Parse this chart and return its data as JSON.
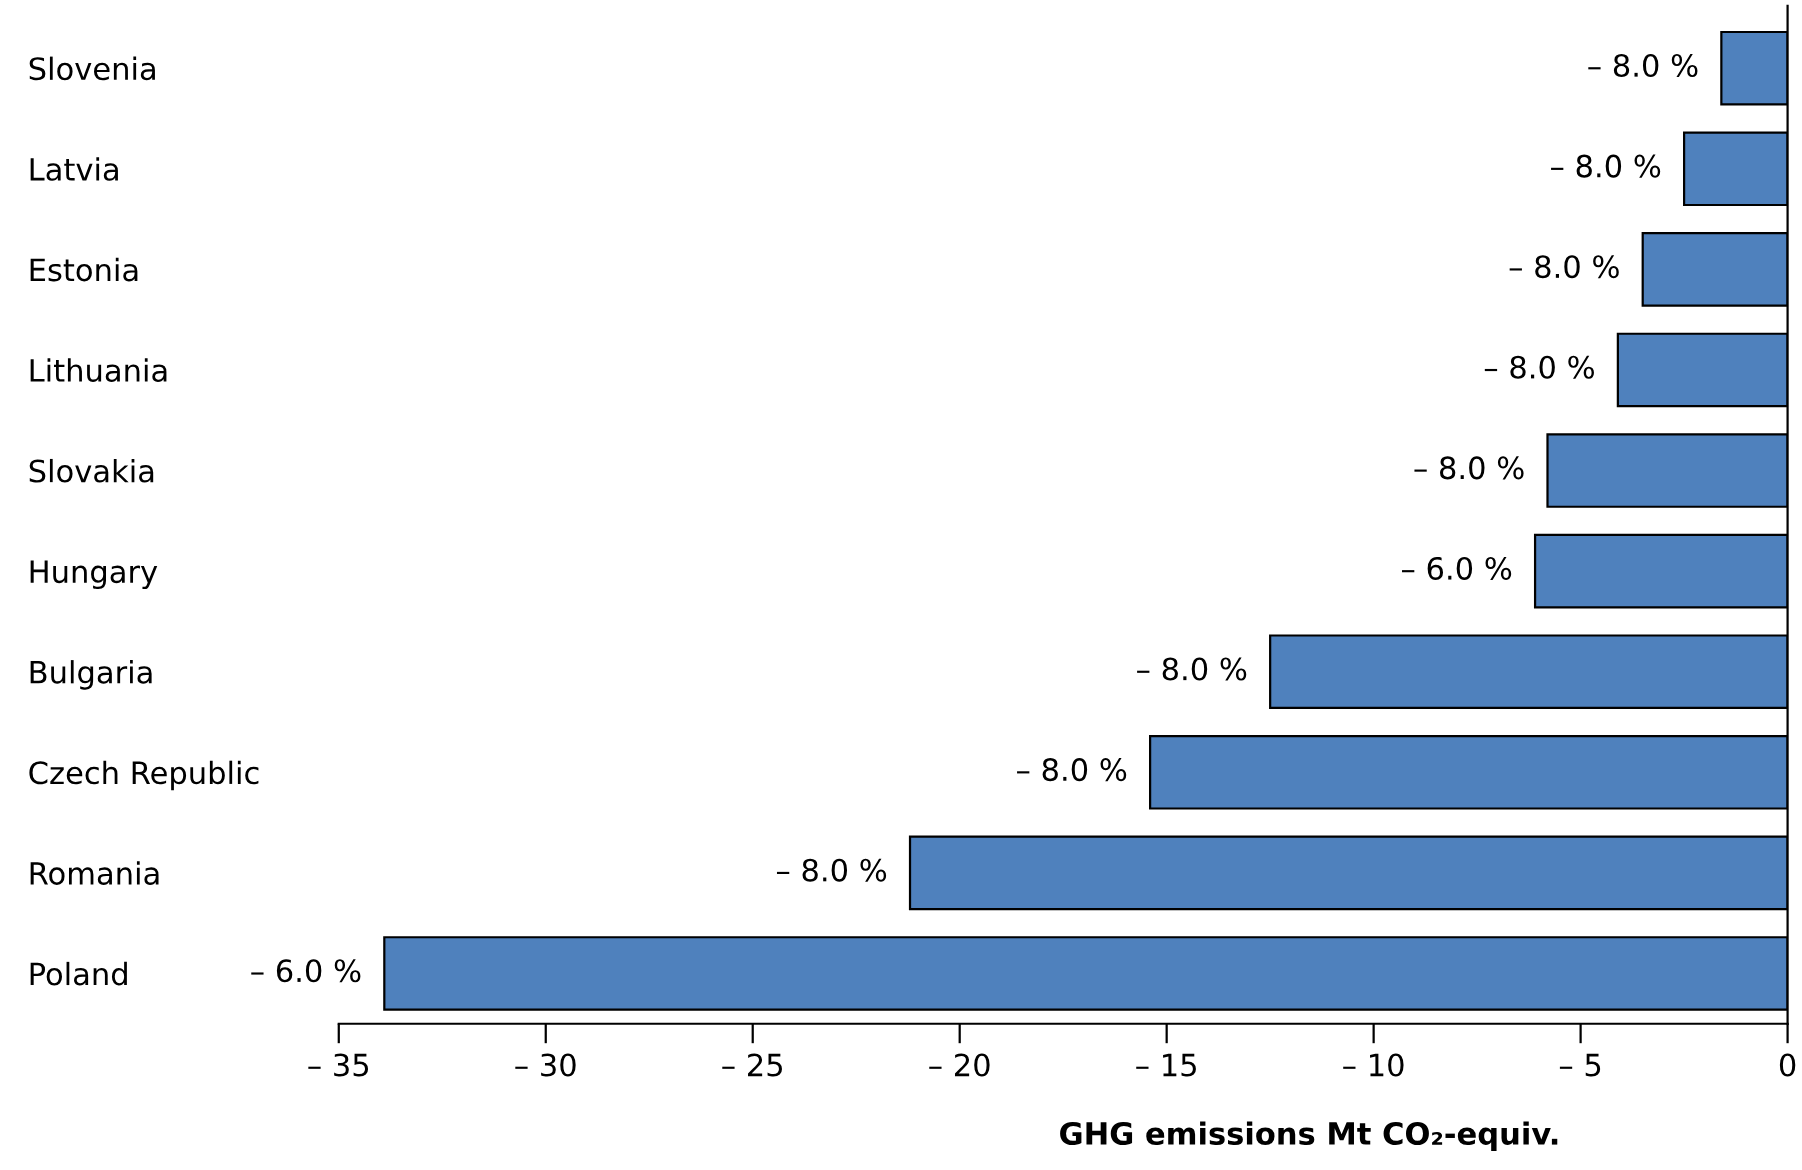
{
  "chart_data": {
    "type": "bar",
    "orientation": "horizontal",
    "xlabel": "GHG emissions Mt CO₂-equiv.",
    "categories": [
      "Slovenia",
      "Latvia",
      "Estonia",
      "Lithuania",
      "Slovakia",
      "Hungary",
      "Bulgaria",
      "Czech Republic",
      "Romania",
      "Poland"
    ],
    "values": [
      -1.6,
      -2.5,
      -3.5,
      -4.1,
      -5.8,
      -6.1,
      -12.5,
      -15.4,
      -21.2,
      -33.9
    ],
    "annotations": [
      {
        "text": "– 8.0 %",
        "x": -1.6,
        "y": "Slovenia"
      },
      {
        "text": "– 8.0 %",
        "x": -2.5,
        "y": "Latvia"
      },
      {
        "text": "– 8.0 %",
        "x": -3.5,
        "y": "Estonia"
      },
      {
        "text": "– 8.0 %",
        "x": -4.1,
        "y": "Lithuania"
      },
      {
        "text": "– 8.0 %",
        "x": -5.8,
        "y": "Slovakia"
      },
      {
        "text": "– 6.0 %",
        "x": -6.1,
        "y": "Hungary"
      },
      {
        "text": "– 8.0 %",
        "x": -12.5,
        "y": "Bulgaria"
      },
      {
        "text": "– 8.0 %",
        "x": -15.4,
        "y": "Czech Republic"
      },
      {
        "text": "– 8.0 %",
        "x": -21.2,
        "y": "Romania"
      },
      {
        "text": "– 6.0 %",
        "x": -33.9,
        "y": "Poland"
      }
    ],
    "color": "#4f81bd",
    "xlim": [
      -35,
      0
    ],
    "xticks": [
      {
        "value": -35,
        "label": "– 35"
      },
      {
        "value": -30,
        "label": "– 30"
      },
      {
        "value": -25,
        "label": "– 25"
      },
      {
        "value": -20,
        "label": "– 20"
      },
      {
        "value": -15,
        "label": "– 15"
      },
      {
        "value": -10,
        "label": "– 10"
      },
      {
        "value": -5,
        "label": "– 5"
      },
      0
    ],
    "grid": false
  }
}
